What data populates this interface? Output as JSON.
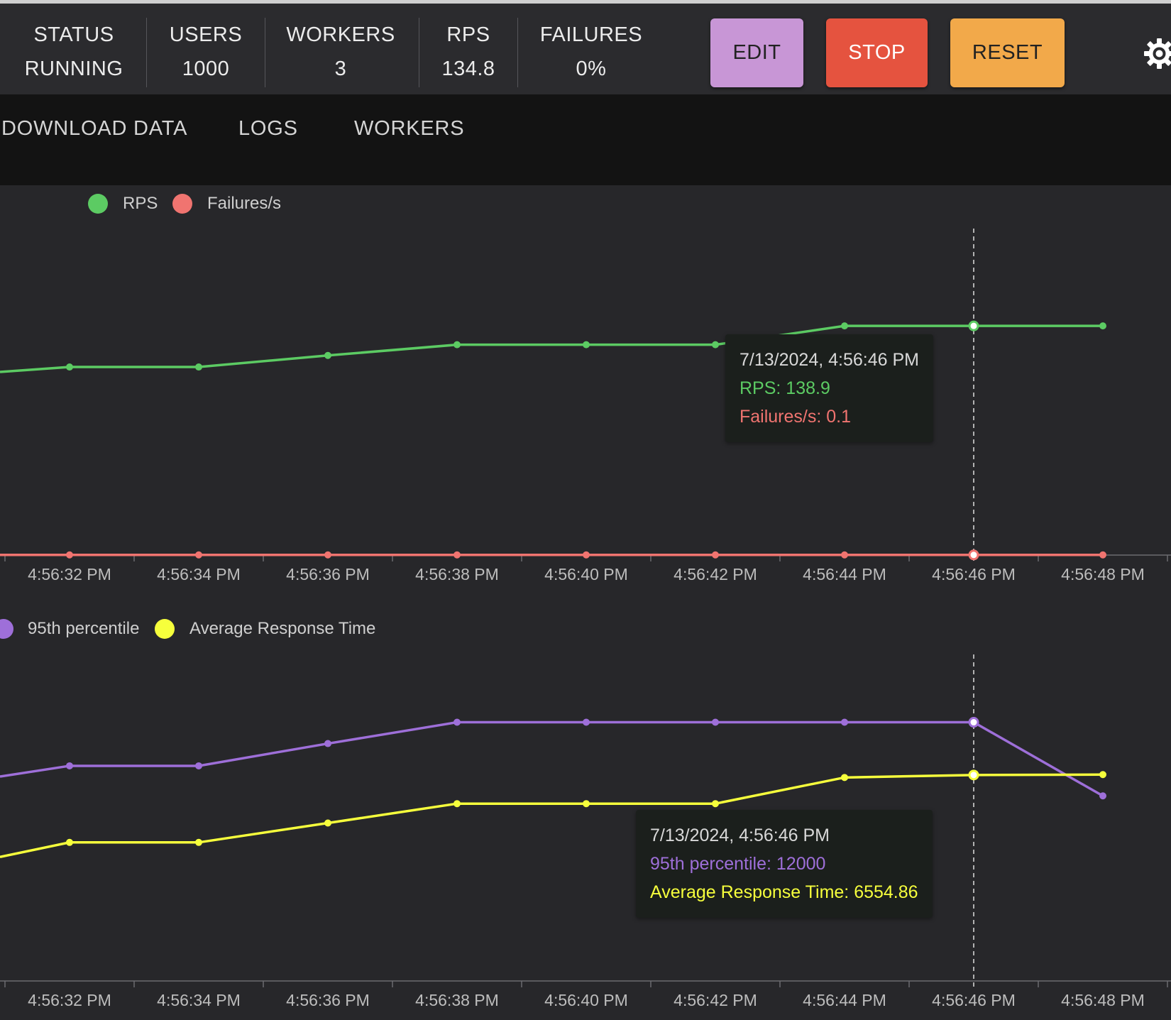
{
  "header": {
    "stats": [
      {
        "label": "STATUS",
        "value": "RUNNING"
      },
      {
        "label": "USERS",
        "value": "1000"
      },
      {
        "label": "WORKERS",
        "value": "3"
      },
      {
        "label": "RPS",
        "value": "134.8"
      },
      {
        "label": "FAILURES",
        "value": "0%"
      }
    ],
    "buttons": {
      "edit": {
        "label": "EDIT",
        "color": "#c896d6"
      },
      "stop": {
        "label": "STOP",
        "color": "#e5533f"
      },
      "reset": {
        "label": "RESET",
        "color": "#f2a94a"
      }
    },
    "settings_icon": "gear-icon"
  },
  "nav": {
    "tabs": [
      "DOWNLOAD DATA",
      "LOGS",
      "WORKERS"
    ]
  },
  "colors": {
    "rps": "#5ccb63",
    "failures": "#f07470",
    "p95": "#9e6fd9",
    "avg": "#f6ff3c"
  },
  "chart_data": [
    {
      "type": "line",
      "legend": [
        "RPS",
        "Failures/s"
      ],
      "legend_placement": "top-left",
      "categories": [
        "4:56:32 PM",
        "4:56:34 PM",
        "4:56:36 PM",
        "4:56:38 PM",
        "4:56:40 PM",
        "4:56:42 PM",
        "4:56:44 PM",
        "4:56:46 PM",
        "4:56:48 PM"
      ],
      "series": [
        {
          "name": "RPS",
          "values": [
            114,
            114,
            121,
            127.5,
            127.5,
            127.5,
            138.9,
            138.9,
            138.9
          ]
        },
        {
          "name": "Failures/s",
          "values": [
            0.1,
            0.1,
            0.1,
            0.1,
            0.1,
            0.1,
            0.1,
            0.1,
            0.1
          ]
        }
      ],
      "ylim": [
        0,
        185
      ],
      "tooltip": {
        "title": "7/13/2024, 4:56:46 PM",
        "lines": [
          "RPS: 138.9",
          "Failures/s: 0.1"
        ]
      }
    },
    {
      "type": "line",
      "legend": [
        "95th percentile",
        "Average Response Time"
      ],
      "legend_placement": "top-left",
      "categories": [
        "4:56:32 PM",
        "4:56:34 PM",
        "4:56:36 PM",
        "4:56:38 PM",
        "4:56:40 PM",
        "4:56:42 PM",
        "4:56:44 PM",
        "4:56:46 PM",
        "4:56:48 PM"
      ],
      "series": [
        {
          "name": "95th percentile",
          "values": [
            7500,
            7500,
            9800,
            12000,
            12000,
            12000,
            12000,
            12000,
            4400
          ]
        },
        {
          "name": "Average Response Time",
          "values": [
            -400,
            -400,
            1600,
            3600,
            3600,
            3600,
            6300,
            6554.86,
            6600
          ]
        }
      ],
      "ylim": [
        -14700,
        16800
      ],
      "tooltip": {
        "title": "7/13/2024, 4:56:46 PM",
        "lines": [
          "95th percentile: 12000",
          "Average Response Time: 6554.86"
        ]
      }
    }
  ]
}
